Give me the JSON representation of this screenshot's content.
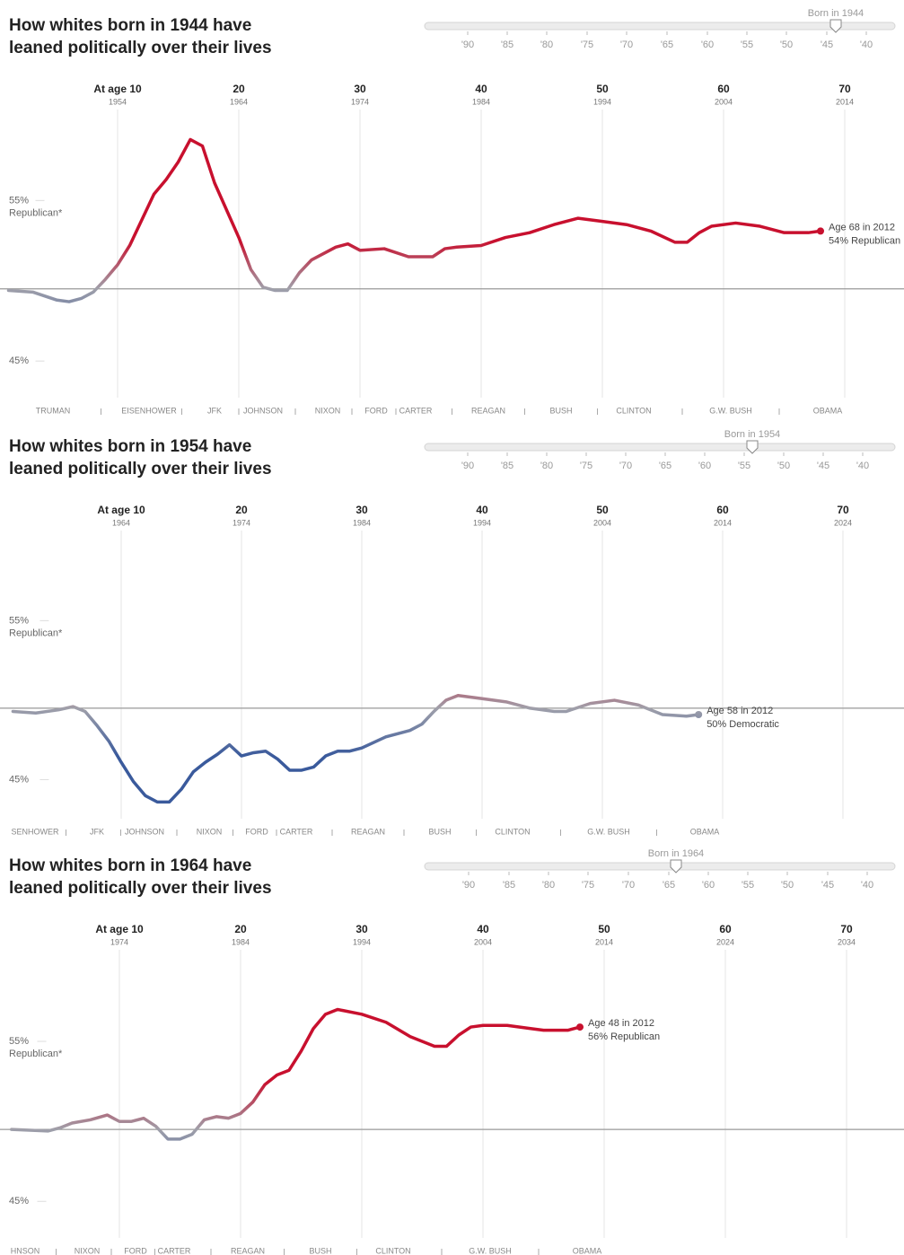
{
  "chart_data": [
    {
      "type": "line",
      "title": "How whites born in 1944 have leaned politically over their lives",
      "slider": {
        "label": "Born in 1944",
        "ticks": [
          "'90",
          "'85",
          "'80",
          "'75",
          "'70",
          "'65",
          "'60",
          "'55",
          "'50",
          "'45",
          "'40"
        ]
      },
      "xlim": [
        1,
        74
      ],
      "xticks": [
        {
          "value": 10,
          "label": "At age 10"
        },
        20,
        30,
        40,
        50,
        60,
        70
      ],
      "xtick_years": [
        1954,
        1964,
        1974,
        1984,
        1994,
        2004,
        2014
      ],
      "ylim": [
        43.5,
        60.5
      ],
      "yticks": [
        {
          "value": 55,
          "label": "55%"
        },
        {
          "value": 45,
          "label": "45%"
        }
      ],
      "ylabel": "Republican*",
      "reference_line": 50,
      "presidents": [
        "TRUMAN",
        "EISENHOWER",
        "JFK",
        "JOHNSON",
        "NIXON",
        "FORD",
        "CARTER",
        "REAGAN",
        "BUSH",
        "CLINTON",
        "G.W. BUSH",
        "OBAMA"
      ],
      "annotation": [
        "Age 68 in 2012",
        "54% Republican"
      ],
      "colors": {
        "republican": "#c8102e",
        "democratic": "#3a5a9c",
        "neutral": "#a0a0aa"
      },
      "x": [
        1,
        3,
        5,
        6,
        7,
        8,
        9,
        10,
        11,
        12,
        13,
        14,
        15,
        16,
        17,
        18,
        19,
        20,
        21,
        22,
        23,
        24,
        25,
        26,
        27,
        28,
        29,
        30,
        32,
        34,
        36,
        37,
        38,
        40,
        42,
        44,
        46,
        48,
        50,
        52,
        54,
        56,
        57,
        58,
        59,
        61,
        63,
        65,
        67,
        68
      ],
      "values": [
        49.9,
        49.8,
        49.3,
        49.2,
        49.4,
        49.8,
        50.6,
        51.5,
        52.7,
        54.3,
        55.9,
        56.8,
        57.9,
        59.3,
        58.9,
        56.6,
        54.9,
        53.2,
        51.2,
        50.1,
        49.9,
        49.9,
        51.0,
        51.8,
        52.2,
        52.6,
        52.8,
        52.4,
        52.5,
        52.0,
        52.0,
        52.5,
        52.6,
        52.7,
        53.2,
        53.5,
        54.0,
        54.4,
        54.2,
        54.0,
        53.6,
        52.9,
        52.9,
        53.5,
        53.9,
        54.1,
        53.9,
        53.5,
        53.5,
        53.6
      ]
    },
    {
      "type": "line",
      "title": "How whites born in 1954 have leaned politically over their lives",
      "slider": {
        "label": "Born in 1954",
        "ticks": [
          "'90",
          "'85",
          "'80",
          "'75",
          "'70",
          "'65",
          "'60",
          "'55",
          "'50",
          "'45",
          "'40"
        ]
      },
      "xlim": [
        1,
        74
      ],
      "xticks": [
        {
          "value": 10,
          "label": "At age 10"
        },
        20,
        30,
        40,
        50,
        60,
        70
      ],
      "xtick_years": [
        1964,
        1974,
        1984,
        1994,
        2004,
        2014,
        2024
      ],
      "ylim": [
        43.5,
        60.5
      ],
      "yticks": [
        {
          "value": 55,
          "label": "55%"
        },
        {
          "value": 45,
          "label": "45%"
        }
      ],
      "ylabel": "Republican*",
      "reference_line": 50,
      "presidents": [
        "SENHOWER",
        "JFK",
        "JOHNSON",
        "NIXON",
        "FORD",
        "CARTER",
        "REAGAN",
        "BUSH",
        "CLINTON",
        "G.W. BUSH",
        "OBAMA"
      ],
      "annotation": [
        "Age 58 in 2012",
        "50% Democratic"
      ],
      "colors": {
        "republican": "#c8102e",
        "democratic": "#3a5a9c",
        "neutral": "#a0a0aa"
      },
      "x": [
        1,
        2.9,
        4.8,
        6,
        7,
        8,
        9,
        10,
        11,
        12,
        13,
        14,
        15,
        16,
        17,
        18,
        19,
        20,
        21,
        22,
        23,
        24,
        25,
        26,
        27,
        28,
        29,
        30,
        32,
        34,
        35,
        36,
        37,
        38,
        40,
        42,
        44,
        46,
        47,
        49,
        51,
        53,
        55,
        57,
        58
      ],
      "values": [
        49.8,
        49.7,
        49.9,
        50.1,
        49.8,
        48.9,
        47.9,
        46.6,
        45.4,
        44.5,
        44.1,
        44.1,
        44.9,
        46.0,
        46.6,
        47.1,
        47.7,
        47.0,
        47.2,
        47.3,
        46.8,
        46.1,
        46.1,
        46.3,
        47.0,
        47.3,
        47.3,
        47.5,
        48.2,
        48.6,
        49.0,
        49.8,
        50.5,
        50.8,
        50.6,
        50.4,
        50.0,
        49.8,
        49.8,
        50.3,
        50.5,
        50.2,
        49.6,
        49.5,
        49.6
      ]
    },
    {
      "type": "line",
      "title": "How whites born in 1964 have leaned politically over their lives",
      "slider": {
        "label": "Born in 1964",
        "ticks": [
          "'90",
          "'85",
          "'80",
          "'75",
          "'70",
          "'65",
          "'60",
          "'55",
          "'50",
          "'45",
          "'40"
        ]
      },
      "xlim": [
        1,
        74
      ],
      "xticks": [
        {
          "value": 10,
          "label": "At age 10"
        },
        20,
        30,
        40,
        50,
        60,
        70
      ],
      "xtick_years": [
        1974,
        1984,
        1994,
        2004,
        2014,
        2024,
        2034
      ],
      "ylim": [
        43.5,
        60.5
      ],
      "yticks": [
        {
          "value": 55,
          "label": "55%"
        },
        {
          "value": 45,
          "label": "45%"
        }
      ],
      "ylabel": "Republican*",
      "reference_line": 50,
      "presidents": [
        "HNSON",
        "NIXON",
        "FORD",
        "CARTER",
        "REAGAN",
        "BUSH",
        "CLINTON",
        "G.W. BUSH",
        "OBAMA"
      ],
      "annotation": [
        "Age 48 in 2012",
        "56% Republican"
      ],
      "colors": {
        "republican": "#c8102e",
        "democratic": "#3a5a9c",
        "neutral": "#a0a0aa"
      },
      "x": [
        1.1,
        4.1,
        5.1,
        6.1,
        7.6,
        9,
        10,
        11,
        12,
        13,
        14,
        15,
        16,
        17,
        18,
        19,
        20,
        21,
        22,
        23,
        24,
        25,
        26,
        27,
        28,
        30,
        32,
        34,
        36,
        37,
        38,
        39,
        40,
        42,
        44,
        45,
        47,
        48
      ],
      "values": [
        50.0,
        49.9,
        50.1,
        50.4,
        50.6,
        50.9,
        50.5,
        50.5,
        50.7,
        50.2,
        49.4,
        49.4,
        49.7,
        50.6,
        50.8,
        50.7,
        51.0,
        51.7,
        52.8,
        53.4,
        53.7,
        54.9,
        56.3,
        57.2,
        57.5,
        57.2,
        56.7,
        55.8,
        55.2,
        55.2,
        55.9,
        56.4,
        56.5,
        56.5,
        56.3,
        56.2,
        56.2,
        56.4
      ]
    }
  ]
}
